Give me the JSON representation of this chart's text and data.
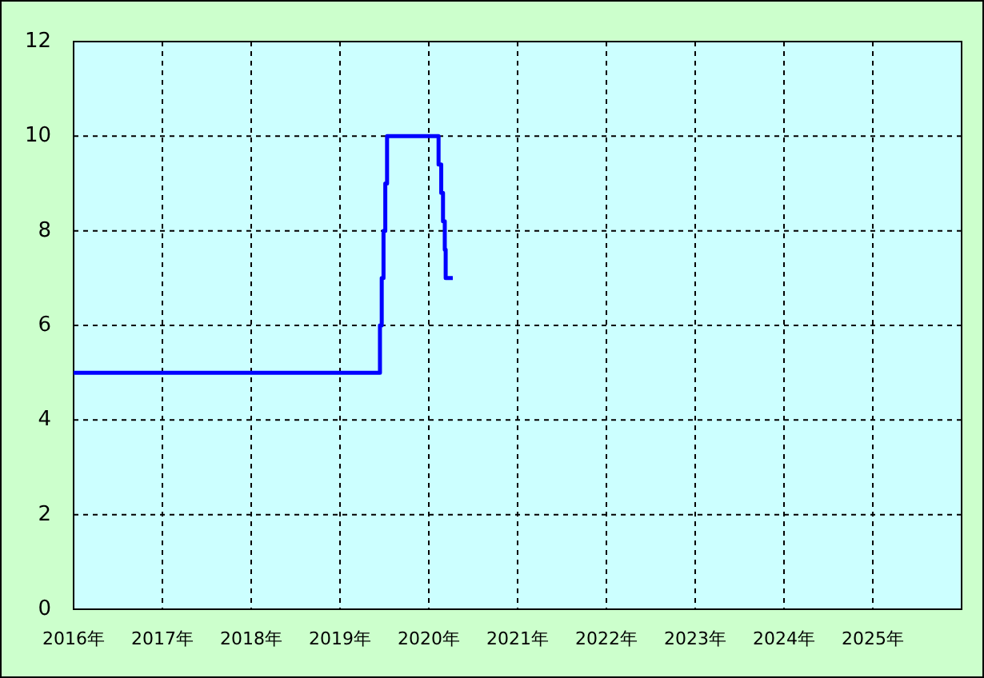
{
  "chart_data": {
    "type": "step",
    "x": [
      2016,
      2019.45,
      2019.47,
      2019.49,
      2019.51,
      2019.53,
      2020.11,
      2020.14,
      2020.16,
      2020.18,
      2020.19,
      2020.27
    ],
    "series": [
      {
        "color": "#0000ff",
        "values": [
          5,
          6,
          7,
          8,
          9,
          10,
          9.4,
          8.8,
          8.2,
          7.6,
          7,
          7
        ]
      }
    ],
    "xlim": [
      2016,
      2026
    ],
    "xticks": [
      {
        "value": 2016,
        "label": "2016年"
      },
      {
        "value": 2017,
        "label": "2017年"
      },
      {
        "value": 2018,
        "label": "2018年"
      },
      {
        "value": 2019,
        "label": "2019年"
      },
      {
        "value": 2020,
        "label": "2020年"
      },
      {
        "value": 2021,
        "label": "2021年"
      },
      {
        "value": 2022,
        "label": "2022年"
      },
      {
        "value": 2023,
        "label": "2023年"
      },
      {
        "value": 2024,
        "label": "2024年"
      },
      {
        "value": 2025,
        "label": "2025年"
      }
    ],
    "ylim": [
      0,
      12
    ],
    "yticks": [
      0,
      2,
      4,
      6,
      8,
      10,
      12
    ],
    "grid": true,
    "line_style": "solid"
  }
}
